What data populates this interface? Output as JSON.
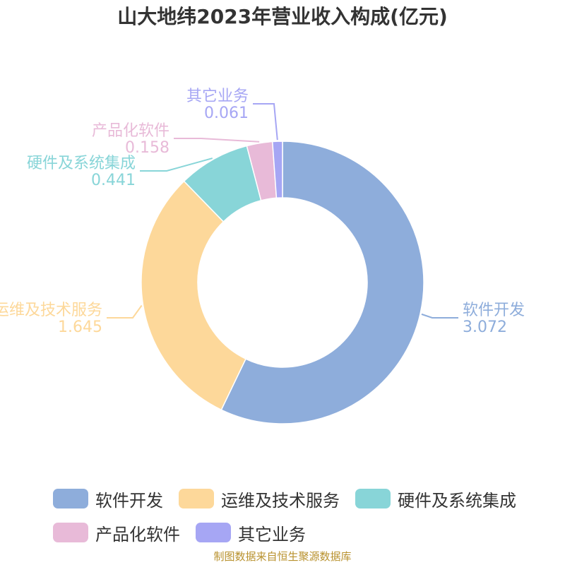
{
  "chart_data": {
    "type": "pie",
    "title": "山大地纬2023年营业收入构成(亿元)",
    "categories": [
      "软件开发",
      "运维及技术服务",
      "硬件及系统集成",
      "产品化软件",
      "其它业务"
    ],
    "values": [
      3.072,
      1.645,
      0.441,
      0.158,
      0.061
    ],
    "value_labels": [
      "3.072",
      "1.645",
      "0.441",
      "0.158",
      "0.061"
    ],
    "colors": [
      "#8eaddb",
      "#fdd89a",
      "#88d5d8",
      "#e8bad8",
      "#a6a6f4"
    ],
    "donut": true,
    "legend_position": "bottom"
  },
  "source_note": "制图数据来自恒生聚源数据库"
}
